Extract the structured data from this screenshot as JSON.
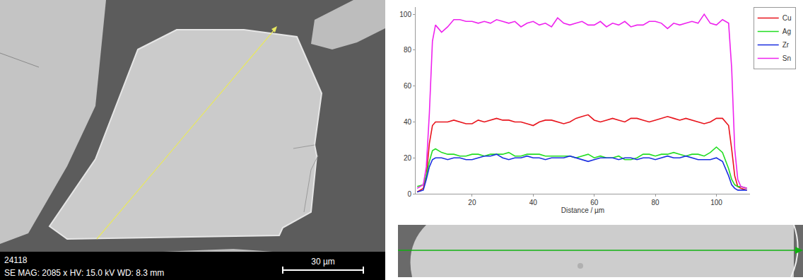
{
  "chart_data": {
    "type": "line",
    "x_label": "Distance / µm",
    "x": [
      2,
      4,
      5,
      6,
      7,
      8,
      10,
      12,
      14,
      16,
      18,
      20,
      22,
      24,
      26,
      28,
      30,
      32,
      34,
      36,
      38,
      40,
      42,
      44,
      46,
      48,
      50,
      52,
      54,
      56,
      58,
      60,
      62,
      64,
      66,
      68,
      70,
      72,
      74,
      76,
      78,
      80,
      82,
      84,
      86,
      88,
      90,
      92,
      94,
      96,
      98,
      100,
      102,
      104,
      105,
      106,
      107,
      108,
      110
    ],
    "series": [
      {
        "name": "Cu",
        "color": "#e8141c",
        "values": [
          1,
          3,
          10,
          28,
          38,
          40,
          40,
          40,
          41,
          40,
          39,
          39,
          41,
          40,
          41,
          42,
          41,
          41,
          40,
          40,
          39,
          38,
          40,
          41,
          41,
          40,
          39,
          40,
          42,
          43,
          44,
          41,
          40,
          41,
          42,
          41,
          40,
          42,
          42,
          41,
          40,
          41,
          42,
          43,
          42,
          41,
          42,
          41,
          40,
          39,
          40,
          42,
          42,
          38,
          25,
          10,
          4,
          3,
          2
        ]
      },
      {
        "name": "Ag",
        "color": "#22dd22",
        "values": [
          4,
          5,
          10,
          18,
          24,
          25,
          23,
          22,
          22,
          21,
          21,
          22,
          22,
          21,
          22,
          22,
          22,
          23,
          21,
          21,
          22,
          22,
          22,
          21,
          21,
          21,
          21,
          21,
          20,
          21,
          22,
          20,
          21,
          20,
          20,
          21,
          19,
          19,
          20,
          22,
          22,
          21,
          22,
          22,
          23,
          22,
          21,
          22,
          22,
          21,
          23,
          26,
          23,
          14,
          8,
          5,
          4,
          4,
          3
        ]
      },
      {
        "name": "Zr",
        "color": "#1a2ee0",
        "values": [
          1,
          2,
          8,
          15,
          19,
          20,
          20,
          19,
          20,
          20,
          19,
          19,
          20,
          21,
          21,
          22,
          20,
          19,
          20,
          20,
          21,
          20,
          20,
          19,
          20,
          20,
          20,
          21,
          20,
          19,
          18,
          19,
          20,
          20,
          20,
          19,
          20,
          20,
          19,
          20,
          20,
          19,
          20,
          21,
          20,
          20,
          21,
          20,
          19,
          19,
          19,
          20,
          18,
          10,
          5,
          3,
          2,
          2,
          2
        ]
      },
      {
        "name": "Sn",
        "color": "#ee22ee",
        "values": [
          3,
          5,
          15,
          45,
          85,
          94,
          90,
          93,
          97,
          97,
          96,
          96,
          95,
          96,
          95,
          97,
          96,
          95,
          96,
          93,
          95,
          96,
          94,
          95,
          93,
          98,
          95,
          94,
          95,
          96,
          94,
          94,
          96,
          93,
          95,
          94,
          96,
          93,
          94,
          94,
          96,
          96,
          95,
          92,
          95,
          94,
          95,
          96,
          95,
          100,
          95,
          94,
          97,
          95,
          70,
          25,
          8,
          4,
          3
        ]
      }
    ],
    "xlim": [
      1.5,
      111
    ],
    "xticks": [
      20,
      40,
      60,
      80,
      100
    ],
    "ylim": [
      0,
      104
    ],
    "yticks": [
      0,
      20,
      40,
      60,
      80,
      100
    ],
    "grid": false,
    "legend": "right"
  },
  "sem_image": {
    "label": "24118",
    "info": "SE  MAG: 2085 x  HV: 15.0 kV  WD: 8.3 mm",
    "scale_bar": "30 µm"
  }
}
